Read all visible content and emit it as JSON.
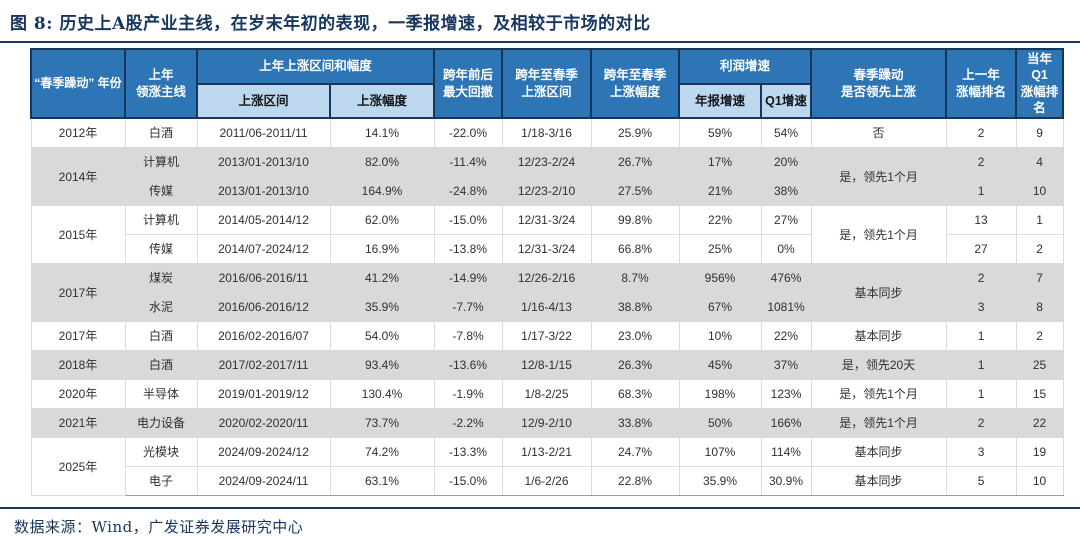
{
  "title": "图 8:  历史上A股产业主线，在岁末年初的表现，一季报增速，及相较于市场的对比",
  "source": "数据来源：Wind，广发证券发展研究中心",
  "colors": {
    "header_blue": "#2E75B6",
    "subheader_light_blue": "#BDD7EE",
    "row_shade_gray": "#D9D9D9",
    "accent_navy": "#17365D"
  },
  "table": {
    "headers": {
      "year": "“春季躁动” 年份",
      "main": "上年\n领涨主线",
      "rise_group": "上年上涨区间和幅度",
      "rise_range": "上涨区间",
      "rise_pct": "上涨幅度",
      "drawdown": "跨年前后\n最大回撤",
      "spring_range": "跨年至春季\n上涨区间",
      "spring_pct": "跨年至春季\n上涨幅度",
      "profit_group": "利润增速",
      "annual_growth": "年报增速",
      "q1_growth": "Q1增速",
      "lead": "春季躁动\n是否领先上涨",
      "prev_rank": "上一年\n涨幅排名",
      "q1_rank": "当年Q1\n涨幅排名"
    },
    "rows": [
      {
        "year": {
          "label": "2012年",
          "rowspan": 1
        },
        "main": "白酒",
        "rise_range": "2011/06-2011/11",
        "rise_pct": "14.1%",
        "drawdown": "-22.0%",
        "spring_range": "1/18-3/16",
        "spring_pct": "25.9%",
        "annual_growth": "59%",
        "q1_growth": "54%",
        "lead": {
          "label": "否",
          "rowspan": 1
        },
        "prev_rank": "2",
        "q1_rank": "9",
        "shade": false
      },
      {
        "year": {
          "label": "2014年",
          "rowspan": 2
        },
        "main": "计算机",
        "rise_range": "2013/01-2013/10",
        "rise_pct": "82.0%",
        "drawdown": "-11.4%",
        "spring_range": "12/23-2/24",
        "spring_pct": "26.7%",
        "annual_growth": "17%",
        "q1_growth": "20%",
        "lead": {
          "label": "是，领先1个月",
          "rowspan": 2
        },
        "prev_rank": "2",
        "q1_rank": "4",
        "shade": true
      },
      {
        "main": "传媒",
        "rise_range": "2013/01-2013/10",
        "rise_pct": "164.9%",
        "drawdown": "-24.8%",
        "spring_range": "12/23-2/10",
        "spring_pct": "27.5%",
        "annual_growth": "21%",
        "q1_growth": "38%",
        "prev_rank": "1",
        "q1_rank": "10",
        "shade": true
      },
      {
        "year": {
          "label": "2015年",
          "rowspan": 2
        },
        "main": "计算机",
        "rise_range": "2014/05-2014/12",
        "rise_pct": "62.0%",
        "drawdown": "-15.0%",
        "spring_range": "12/31-3/24",
        "spring_pct": "99.8%",
        "annual_growth": "22%",
        "q1_growth": "27%",
        "lead": {
          "label": "是，领先1个月",
          "rowspan": 2
        },
        "prev_rank": "13",
        "q1_rank": "1",
        "shade": false
      },
      {
        "main": "传媒",
        "rise_range": "2014/07-2024/12",
        "rise_pct": "16.9%",
        "drawdown": "-13.8%",
        "spring_range": "12/31-3/24",
        "spring_pct": "66.8%",
        "annual_growth": "25%",
        "q1_growth": "0%",
        "prev_rank": "27",
        "q1_rank": "2",
        "shade": false
      },
      {
        "year": {
          "label": "2017年",
          "rowspan": 2
        },
        "main": "煤炭",
        "rise_range": "2016/06-2016/11",
        "rise_pct": "41.2%",
        "drawdown": "-14.9%",
        "spring_range": "12/26-2/16",
        "spring_pct": "8.7%",
        "annual_growth": "956%",
        "q1_growth": "476%",
        "lead": {
          "label": "基本同步",
          "rowspan": 2
        },
        "prev_rank": "2",
        "q1_rank": "7",
        "shade": true
      },
      {
        "main": "水泥",
        "rise_range": "2016/06-2016/12",
        "rise_pct": "35.9%",
        "drawdown": "-7.7%",
        "spring_range": "1/16-4/13",
        "spring_pct": "38.8%",
        "annual_growth": "67%",
        "q1_growth": "1081%",
        "prev_rank": "3",
        "q1_rank": "8",
        "shade": true
      },
      {
        "year": {
          "label": "2017年",
          "rowspan": 1
        },
        "main": "白酒",
        "rise_range": "2016/02-2016/07",
        "rise_pct": "54.0%",
        "drawdown": "-7.8%",
        "spring_range": "1/17-3/22",
        "spring_pct": "23.0%",
        "annual_growth": "10%",
        "q1_growth": "22%",
        "lead": {
          "label": "基本同步",
          "rowspan": 1
        },
        "prev_rank": "1",
        "q1_rank": "2",
        "shade": false
      },
      {
        "year": {
          "label": "2018年",
          "rowspan": 1
        },
        "main": "白酒",
        "rise_range": "2017/02-2017/11",
        "rise_pct": "93.4%",
        "drawdown": "-13.6%",
        "spring_range": "12/8-1/15",
        "spring_pct": "26.3%",
        "annual_growth": "45%",
        "q1_growth": "37%",
        "lead": {
          "label": "是，领先20天",
          "rowspan": 1
        },
        "prev_rank": "1",
        "q1_rank": "25",
        "shade": true
      },
      {
        "year": {
          "label": "2020年",
          "rowspan": 1
        },
        "main": "半导体",
        "rise_range": "2019/01-2019/12",
        "rise_pct": "130.4%",
        "drawdown": "-1.9%",
        "spring_range": "1/8-2/25",
        "spring_pct": "68.3%",
        "annual_growth": "198%",
        "q1_growth": "123%",
        "lead": {
          "label": "是，领先1个月",
          "rowspan": 1
        },
        "prev_rank": "1",
        "q1_rank": "15",
        "shade": false
      },
      {
        "year": {
          "label": "2021年",
          "rowspan": 1
        },
        "main": "电力设备",
        "rise_range": "2020/02-2020/11",
        "rise_pct": "73.7%",
        "drawdown": "-2.2%",
        "spring_range": "12/9-2/10",
        "spring_pct": "33.8%",
        "annual_growth": "50%",
        "q1_growth": "166%",
        "lead": {
          "label": "是，领先1个月",
          "rowspan": 1
        },
        "prev_rank": "2",
        "q1_rank": "22",
        "shade": true
      },
      {
        "year": {
          "label": "2025年",
          "rowspan": 2
        },
        "main": "光模块",
        "rise_range": "2024/09-2024/12",
        "rise_pct": "74.2%",
        "drawdown": "-13.3%",
        "spring_range": "1/13-2/21",
        "spring_pct": "24.7%",
        "annual_growth": "107%",
        "q1_growth": "114%",
        "lead": {
          "label": "基本同步",
          "rowspan": 1
        },
        "prev_rank": "3",
        "q1_rank": "19",
        "shade": false
      },
      {
        "main": "电子",
        "rise_range": "2024/09-2024/11",
        "rise_pct": "63.1%",
        "drawdown": "-15.0%",
        "spring_range": "1/6-2/26",
        "spring_pct": "22.8%",
        "annual_growth": "35.9%",
        "q1_growth": "30.9%",
        "lead": {
          "label": "基本同步",
          "rowspan": 1
        },
        "prev_rank": "5",
        "q1_rank": "10",
        "shade": false
      }
    ]
  }
}
